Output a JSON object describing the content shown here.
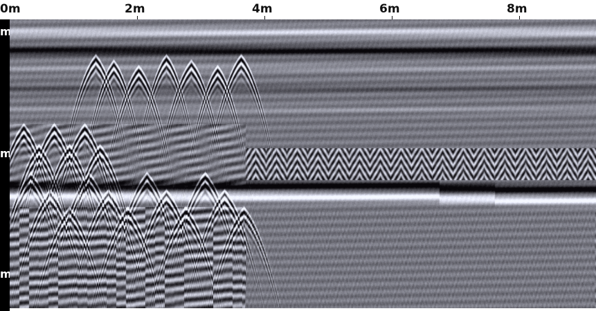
{
  "radargram": {
    "distance_labels": [
      "0m",
      "2m",
      "4m",
      "6m",
      "8m"
    ],
    "depth_labels": [
      "m",
      "m",
      "m"
    ],
    "colors": {
      "background": "#ffffff",
      "axis_bar": "#000000",
      "ruler_text": "#111111",
      "scan_base": "#6f7180",
      "dark_band": "#0a0a12",
      "bright_band": "#ffffff"
    }
  }
}
